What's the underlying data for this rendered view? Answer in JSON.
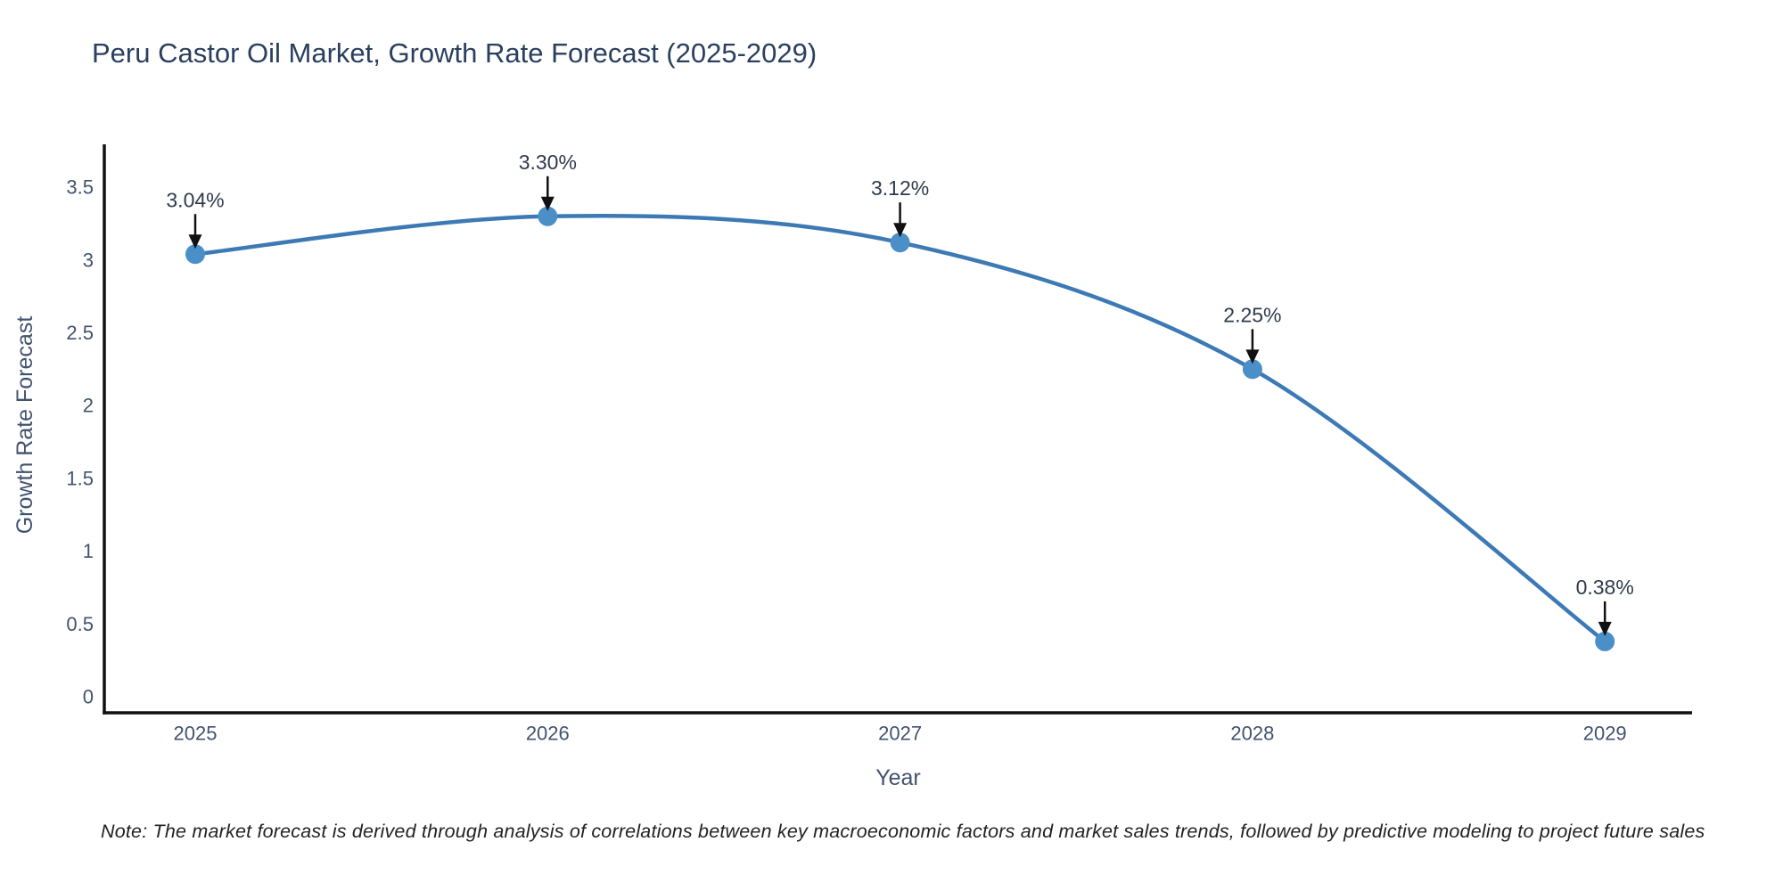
{
  "figure": {
    "note": "Note: The market forecast is derived through analysis of correlations between key macroeconomic factors and market sales trends, followed by predictive modeling to project future sales"
  },
  "chart_data": {
    "type": "line",
    "line_shape": "spline",
    "title": "Peru Castor Oil Market, Growth Rate Forecast (2025-2029)",
    "xlabel": "Year",
    "ylabel": "Growth Rate Forecast",
    "categories": [
      "2025",
      "2026",
      "2027",
      "2028",
      "2029"
    ],
    "values": [
      3.04,
      3.3,
      3.12,
      2.25,
      0.38
    ],
    "point_labels": [
      "3.04%",
      "3.30%",
      "3.12%",
      "2.25%",
      "0.38%"
    ],
    "yticks": [
      "0",
      "0.5",
      "1",
      "1.5",
      "2",
      "2.5",
      "3",
      "3.5"
    ],
    "ylim": [
      -0.11,
      3.8
    ],
    "grid": false,
    "legend_position": "none",
    "annotations_style": "label-with-down-arrow",
    "colors": {
      "line": "#3d7ab5",
      "marker": "#4a8fc7",
      "axis": "#111111",
      "tick_text": "#42536e",
      "axis_title_text": "#42536e",
      "title_text": "#2a3f5f",
      "annotation_text": "#2f3b4c",
      "arrow": "#111111",
      "background": "#ffffff"
    }
  }
}
